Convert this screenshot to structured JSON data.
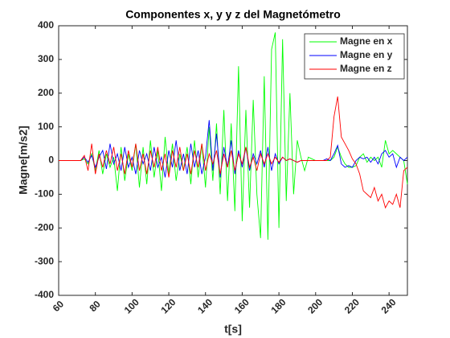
{
  "chart_data": {
    "type": "line",
    "title": "Componentes x, y y z del Magnetómetro",
    "xlabel": "t[s]",
    "ylabel": "Magne[m/s2]",
    "x": [
      60,
      62,
      64,
      66,
      68,
      70,
      72,
      74,
      76,
      78,
      80,
      82,
      84,
      86,
      88,
      90,
      92,
      94,
      96,
      98,
      100,
      102,
      104,
      106,
      108,
      110,
      112,
      114,
      116,
      118,
      120,
      122,
      124,
      126,
      128,
      130,
      132,
      134,
      136,
      138,
      140,
      142,
      144,
      146,
      148,
      150,
      152,
      154,
      156,
      158,
      160,
      162,
      164,
      166,
      168,
      170,
      172,
      174,
      176,
      178,
      180,
      182,
      184,
      186,
      188,
      190,
      192,
      194,
      196,
      198,
      200,
      202,
      204,
      206,
      208,
      210,
      212,
      214,
      216,
      218,
      220,
      222,
      224,
      226,
      228,
      230,
      232,
      234,
      236,
      238,
      240,
      242,
      244,
      246,
      248,
      250
    ],
    "series": [
      {
        "name": "Magne en x",
        "color": "#00ff00",
        "values": [
          0,
          0,
          0,
          0,
          0,
          0,
          0,
          5,
          -10,
          20,
          -30,
          30,
          -40,
          20,
          -20,
          10,
          -90,
          40,
          -60,
          20,
          -30,
          50,
          -80,
          40,
          -70,
          60,
          -50,
          30,
          -90,
          70,
          -40,
          50,
          -60,
          20,
          -30,
          40,
          -70,
          60,
          -50,
          50,
          -80,
          100,
          -60,
          110,
          -100,
          150,
          -120,
          110,
          -150,
          280,
          -180,
          150,
          -140,
          180,
          -100,
          -230,
          250,
          -235,
          330,
          380,
          -200,
          360,
          -120,
          200,
          -100,
          60,
          10,
          -30,
          10,
          5,
          0,
          0,
          0,
          0,
          0,
          10,
          40,
          10,
          -10,
          -20,
          -20,
          -15,
          10,
          20,
          -5,
          10,
          0,
          10,
          -20,
          60,
          20,
          30,
          20,
          10,
          0,
          -70
        ]
      },
      {
        "name": "Magne en y",
        "color": "#0000ff",
        "values": [
          0,
          0,
          0,
          0,
          0,
          0,
          0,
          10,
          -5,
          15,
          -20,
          10,
          30,
          -25,
          50,
          -10,
          20,
          -30,
          40,
          -20,
          10,
          -40,
          30,
          -10,
          20,
          -30,
          40,
          -20,
          10,
          -50,
          30,
          -20,
          60,
          -30,
          20,
          -40,
          50,
          -20,
          30,
          -40,
          10,
          120,
          -30,
          80,
          -50,
          40,
          -20,
          60,
          -40,
          30,
          -20,
          40,
          -30,
          20,
          -10,
          30,
          -20,
          40,
          -30,
          20,
          -10,
          10,
          0,
          5,
          0,
          -5,
          0,
          0,
          0,
          0,
          0,
          0,
          0,
          5,
          0,
          20,
          45,
          -10,
          -20,
          -15,
          -20,
          0,
          10,
          5,
          10,
          -5,
          10,
          -10,
          20,
          30,
          10,
          20,
          -20,
          10,
          0,
          10
        ]
      },
      {
        "name": "Magne en z",
        "color": "#ff0000",
        "values": [
          0,
          0,
          0,
          0,
          0,
          0,
          0,
          15,
          -30,
          50,
          -40,
          20,
          -20,
          30,
          -10,
          40,
          -30,
          20,
          -40,
          30,
          -20,
          50,
          -30,
          20,
          -40,
          30,
          -20,
          40,
          -30,
          20,
          -50,
          30,
          -20,
          40,
          -30,
          20,
          -40,
          30,
          -20,
          50,
          -30,
          20,
          -10,
          30,
          -40,
          20,
          -20,
          30,
          -30,
          20,
          -10,
          40,
          -20,
          10,
          -30,
          20,
          -10,
          20,
          -10,
          10,
          -5,
          10,
          0,
          5,
          0,
          -5,
          0,
          0,
          0,
          0,
          0,
          0,
          0,
          0,
          10,
          130,
          190,
          70,
          50,
          30,
          5,
          -10,
          -40,
          -90,
          -100,
          -110,
          -80,
          -120,
          -100,
          -140,
          -120,
          -130,
          -100,
          -140,
          -30,
          -20
        ]
      }
    ],
    "xlim": [
      60,
      250
    ],
    "xticks": [
      60,
      80,
      100,
      120,
      140,
      160,
      180,
      200,
      220,
      240
    ],
    "ylim": [
      -400,
      400
    ],
    "yticks": [
      -400,
      -300,
      -200,
      -100,
      0,
      100,
      200,
      300,
      400
    ],
    "grid": false,
    "legend": "northeast"
  }
}
